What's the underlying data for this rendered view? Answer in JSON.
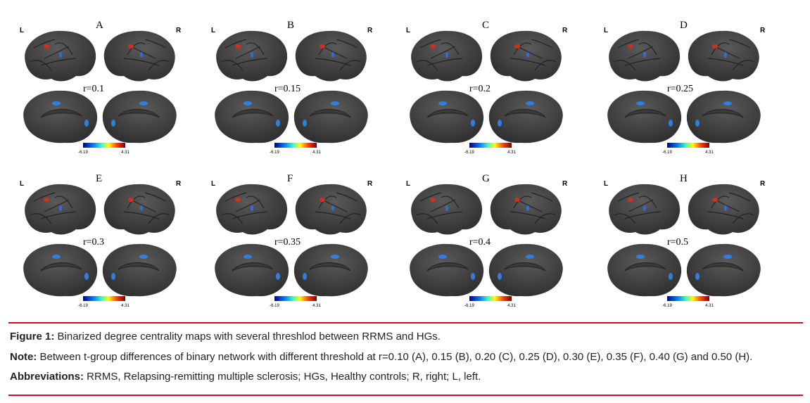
{
  "panels": [
    {
      "letter": "A",
      "left": "L",
      "right": "R",
      "threshold": "r=0.1",
      "scale_min": "-6.19",
      "scale_max": "4.31"
    },
    {
      "letter": "B",
      "left": "L",
      "right": "R",
      "threshold": "r=0.15",
      "scale_min": "-6.19",
      "scale_max": "4.31"
    },
    {
      "letter": "C",
      "left": "L",
      "right": "R",
      "threshold": "r=0.2",
      "scale_min": "-6.19",
      "scale_max": "4.31"
    },
    {
      "letter": "D",
      "left": "L",
      "right": "R",
      "threshold": "r=0.25",
      "scale_min": "-6.19",
      "scale_max": "4.31"
    },
    {
      "letter": "E",
      "left": "L",
      "right": "R",
      "threshold": "r=0.3",
      "scale_min": "-6.19",
      "scale_max": "4.31"
    },
    {
      "letter": "F",
      "left": "L",
      "right": "R",
      "threshold": "r=0.35",
      "scale_min": "-6.19",
      "scale_max": "4.31"
    },
    {
      "letter": "G",
      "left": "L",
      "right": "R",
      "threshold": "r=0.4",
      "scale_min": "-6.19",
      "scale_max": "4.31"
    },
    {
      "letter": "H",
      "left": "L",
      "right": "R",
      "threshold": "r=0.5",
      "scale_min": "-6.19",
      "scale_max": "4.31"
    }
  ],
  "caption": {
    "figure_label": "Figure 1:",
    "figure_text": " Binarized degree centrality maps with several threshlod between RRMS and HGs.",
    "note_label": "Note:",
    "note_text": " Between t-group differences of binary network with different threshold at r=0.10 (A), 0.15 (B), 0.20 (C), 0.25 (D), 0.30 (E), 0.35 (F), 0.40 (G) and 0.50 (H).",
    "abbr_label": "Abbreviations:",
    "abbr_text": " RRMS, Relapsing-remitting multiple sclerosis; HGs, Healthy controls; R, right; L, left."
  }
}
